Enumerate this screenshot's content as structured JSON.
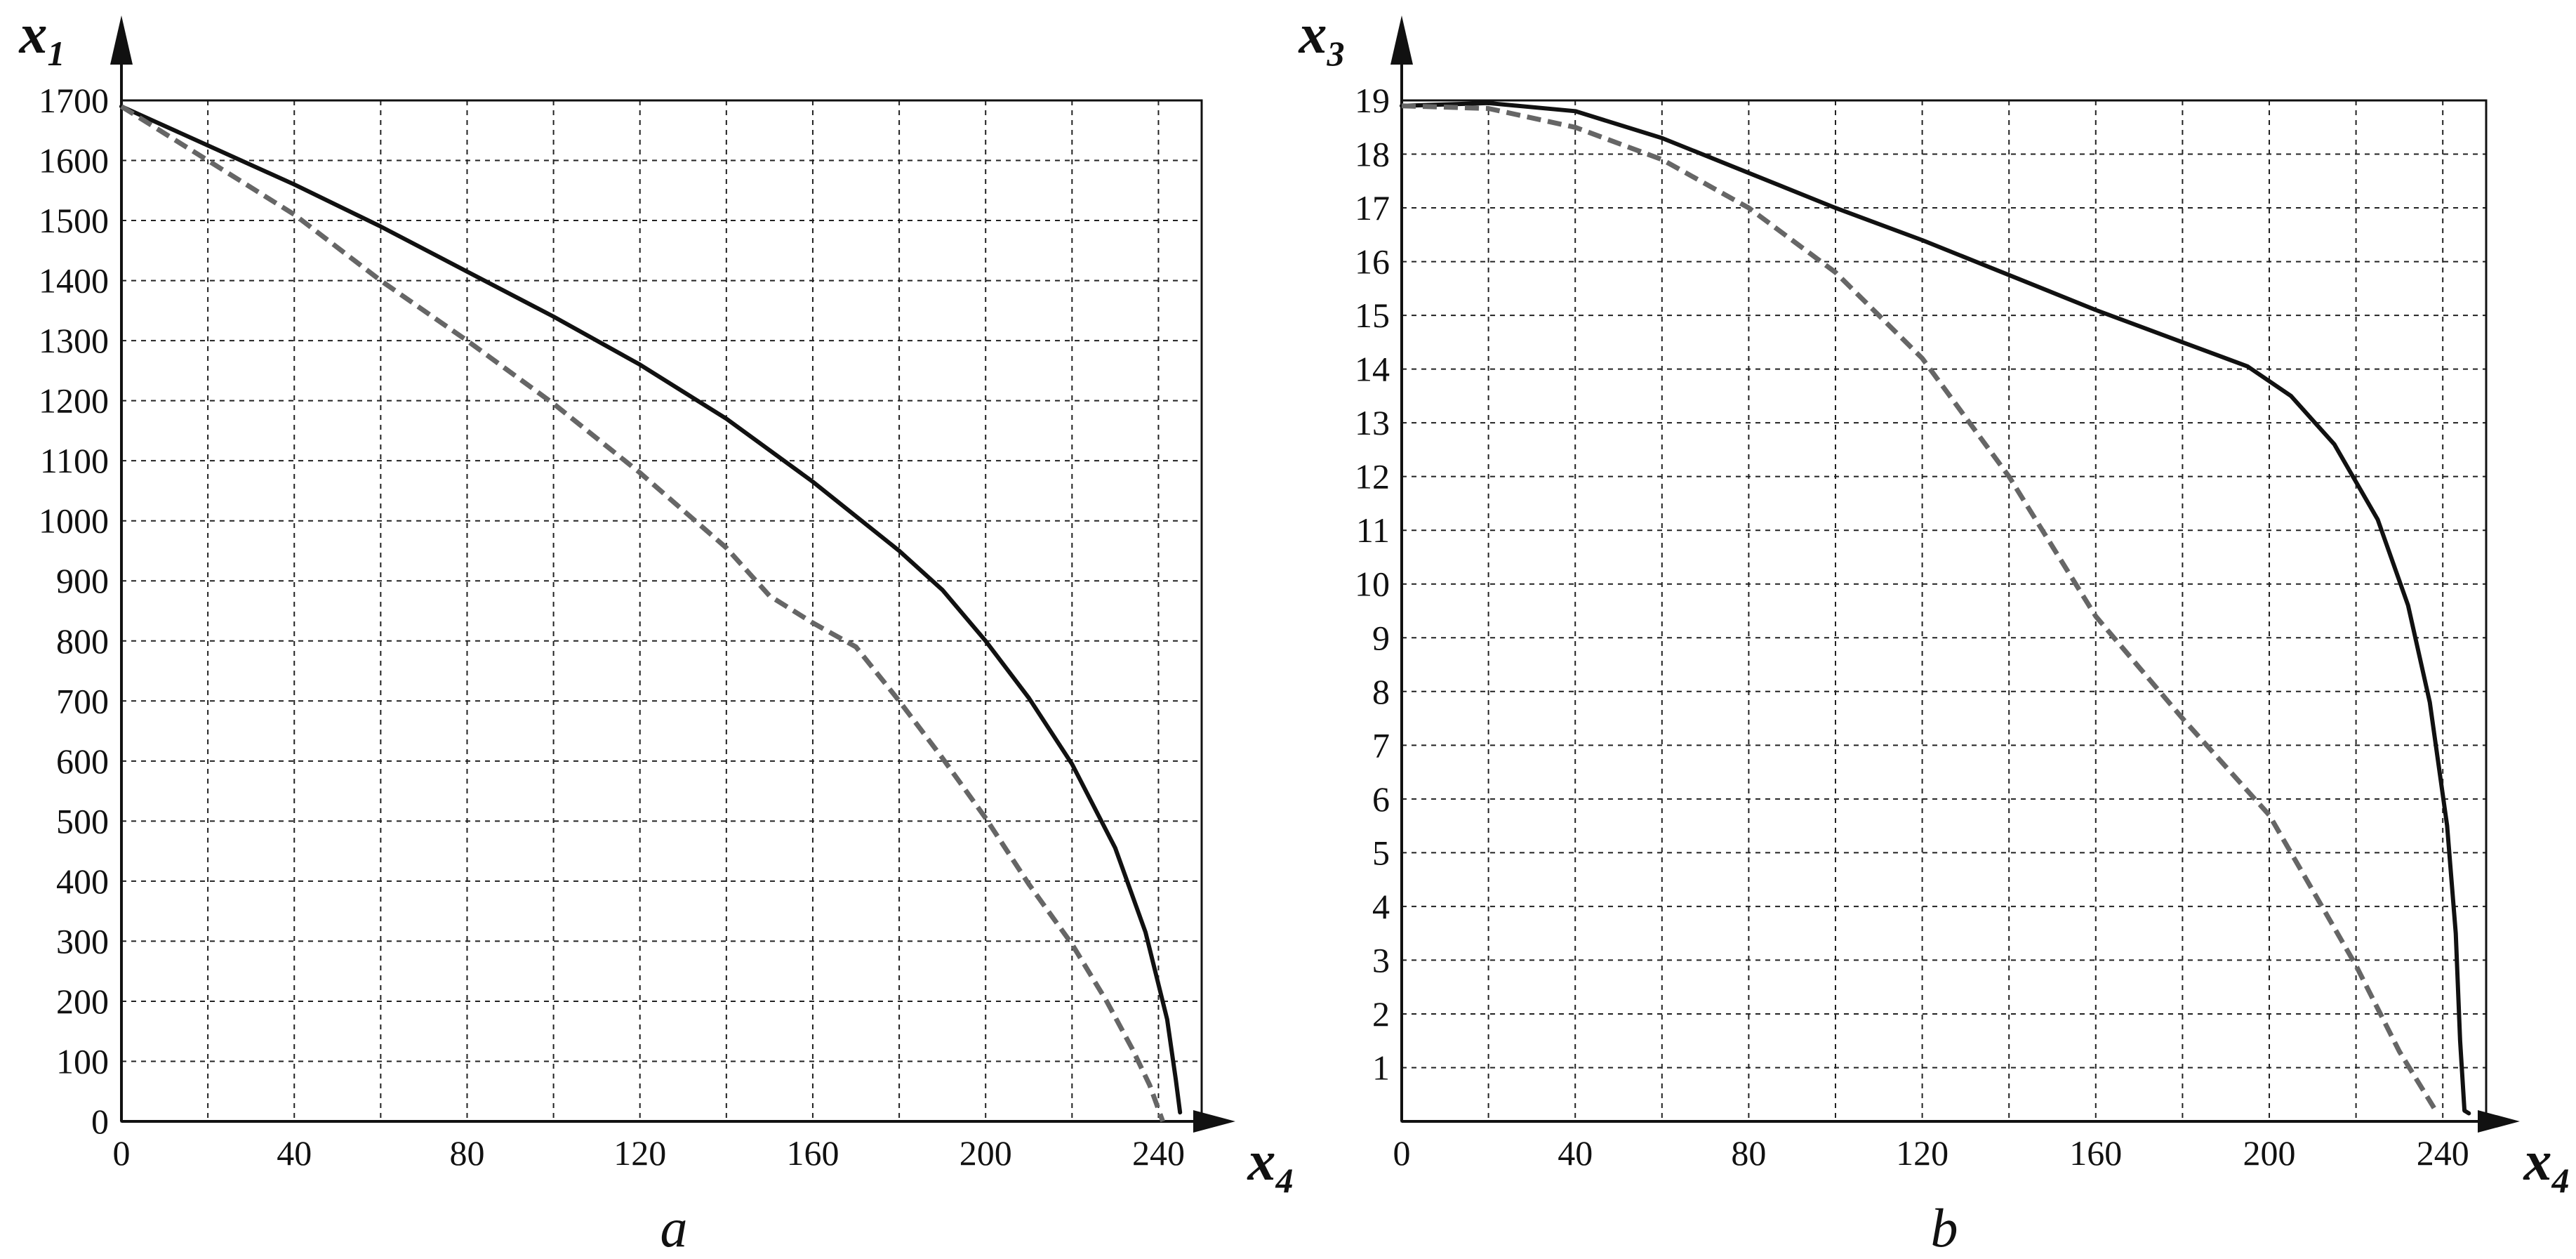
{
  "chart_data": [
    {
      "type": "line",
      "panel_label": "a",
      "xlabel": "x",
      "xlabel_sub": "4",
      "ylabel": "x",
      "ylabel_sub": "1",
      "xlim": [
        0,
        250
      ],
      "ylim": [
        0,
        1700
      ],
      "grid": true,
      "x_ticks": [
        0,
        40,
        80,
        120,
        160,
        200,
        240
      ],
      "y_ticks": [
        0,
        100,
        200,
        300,
        400,
        500,
        600,
        700,
        800,
        900,
        1000,
        1100,
        1200,
        1300,
        1400,
        1500,
        1600,
        1700
      ],
      "series": [
        {
          "style": "solid",
          "color": "#111111",
          "points": [
            [
              0,
              1690
            ],
            [
              20,
              1625
            ],
            [
              40,
              1560
            ],
            [
              60,
              1490
            ],
            [
              80,
              1415
            ],
            [
              100,
              1340
            ],
            [
              120,
              1260
            ],
            [
              140,
              1170
            ],
            [
              160,
              1065
            ],
            [
              180,
              950
            ],
            [
              190,
              885
            ],
            [
              200,
              800
            ],
            [
              210,
              705
            ],
            [
              220,
              595
            ],
            [
              230,
              455
            ],
            [
              237,
              315
            ],
            [
              242,
              170
            ],
            [
              244,
              70
            ],
            [
              245,
              15
            ]
          ]
        },
        {
          "style": "dashed",
          "color": "#666666",
          "points": [
            [
              0,
              1690
            ],
            [
              20,
              1600
            ],
            [
              40,
              1510
            ],
            [
              60,
              1400
            ],
            [
              80,
              1300
            ],
            [
              100,
              1195
            ],
            [
              120,
              1080
            ],
            [
              140,
              955
            ],
            [
              150,
              875
            ],
            [
              160,
              830
            ],
            [
              170,
              790
            ],
            [
              180,
              700
            ],
            [
              190,
              605
            ],
            [
              200,
              505
            ],
            [
              210,
              395
            ],
            [
              220,
              295
            ],
            [
              228,
              200
            ],
            [
              234,
              120
            ],
            [
              238,
              60
            ],
            [
              241,
              0
            ]
          ]
        }
      ]
    },
    {
      "type": "line",
      "panel_label": "b",
      "xlabel": "x",
      "xlabel_sub": "4",
      "ylabel": "x",
      "ylabel_sub": "3",
      "xlim": [
        0,
        250
      ],
      "ylim": [
        0,
        19
      ],
      "grid": true,
      "x_ticks": [
        0,
        40,
        80,
        120,
        160,
        200,
        240
      ],
      "y_ticks": [
        1,
        2,
        3,
        4,
        5,
        6,
        7,
        8,
        9,
        10,
        11,
        12,
        13,
        14,
        15,
        16,
        17,
        18,
        19
      ],
      "series": [
        {
          "style": "solid",
          "color": "#111111",
          "points": [
            [
              0,
              18.9
            ],
            [
              20,
              18.95
            ],
            [
              40,
              18.8
            ],
            [
              60,
              18.3
            ],
            [
              80,
              17.65
            ],
            [
              100,
              17.0
            ],
            [
              120,
              16.4
            ],
            [
              140,
              15.75
            ],
            [
              160,
              15.1
            ],
            [
              180,
              14.5
            ],
            [
              195,
              14.05
            ],
            [
              205,
              13.5
            ],
            [
              215,
              12.6
            ],
            [
              225,
              11.2
            ],
            [
              232,
              9.6
            ],
            [
              237,
              7.8
            ],
            [
              241,
              5.5
            ],
            [
              243,
              3.5
            ],
            [
              244,
              1.5
            ],
            [
              245,
              0.2
            ],
            [
              246,
              0.15
            ]
          ]
        },
        {
          "style": "dashed",
          "color": "#666666",
          "points": [
            [
              0,
              18.9
            ],
            [
              20,
              18.85
            ],
            [
              40,
              18.5
            ],
            [
              60,
              17.9
            ],
            [
              80,
              17.0
            ],
            [
              100,
              15.8
            ],
            [
              120,
              14.2
            ],
            [
              140,
              12.0
            ],
            [
              160,
              9.4
            ],
            [
              180,
              7.5
            ],
            [
              200,
              5.7
            ],
            [
              210,
              4.3
            ],
            [
              220,
              2.9
            ],
            [
              230,
              1.3
            ],
            [
              238,
              0.25
            ]
          ]
        }
      ]
    }
  ]
}
